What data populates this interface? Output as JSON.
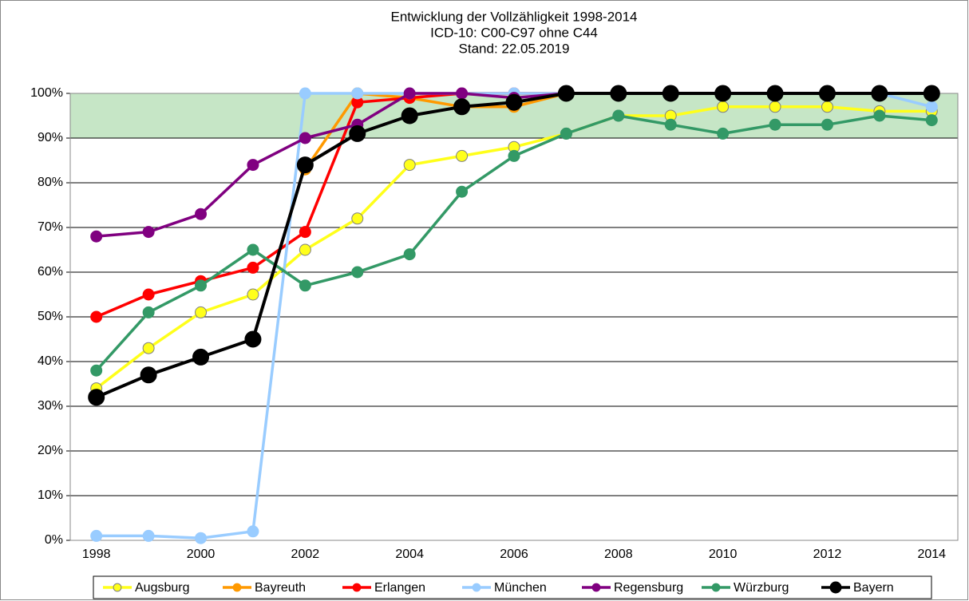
{
  "chart_data": {
    "type": "line",
    "title": "Entwicklung der Vollzähligkeit 1998-2014",
    "subtitle": [
      "ICD-10: C00-C97 ohne C44",
      "Stand: 22.05.2019"
    ],
    "categories": [
      "1998",
      null,
      "2000",
      null,
      "2002",
      null,
      "2004",
      null,
      "2006",
      null,
      "2008",
      null,
      "2010",
      null,
      "2012",
      null,
      "2014"
    ],
    "ylim": [
      0,
      100
    ],
    "yticks": [
      {
        "value": 0,
        "label": "0%"
      },
      {
        "value": 10,
        "label": "10%"
      },
      {
        "value": 20,
        "label": "20%"
      },
      {
        "value": 30,
        "label": "30%"
      },
      {
        "value": 40,
        "label": "40%"
      },
      {
        "value": 50,
        "label": "50%"
      },
      {
        "value": 60,
        "label": "60%"
      },
      {
        "value": 70,
        "label": "70%"
      },
      {
        "value": 80,
        "label": "80%"
      },
      {
        "value": 90,
        "label": "90%"
      },
      {
        "value": 100,
        "label": "100%"
      }
    ],
    "grid": true,
    "target_range": [
      90,
      100
    ],
    "target_color": "#c6e6c6",
    "legend": "bottom",
    "series": [
      {
        "name": "Augsburg",
        "color": "#ffff1a",
        "marker_edge": "#7f7f7f",
        "marker_size": 7,
        "values": [
          34,
          43,
          51,
          55,
          65,
          72,
          84,
          86,
          88,
          91,
          95,
          95,
          97,
          97,
          97,
          96,
          96
        ]
      },
      {
        "name": "Bayreuth",
        "color": "#ff9900",
        "marker_size": 7,
        "values": [
          null,
          null,
          null,
          null,
          83,
          100,
          99,
          97,
          97,
          100,
          100,
          100,
          100,
          100,
          100,
          100,
          100
        ]
      },
      {
        "name": "Erlangen",
        "color": "#ff0000",
        "marker_size": 7,
        "values": [
          50,
          55,
          58,
          61,
          69,
          98,
          99,
          100,
          100,
          100,
          100,
          100,
          100,
          100,
          100,
          100,
          100
        ]
      },
      {
        "name": "München",
        "color": "#99ccff",
        "marker_size": 7,
        "values": [
          1,
          1,
          0.5,
          2,
          100,
          100,
          100,
          100,
          100,
          100,
          100,
          100,
          100,
          100,
          100,
          100,
          97
        ]
      },
      {
        "name": "Regensburg",
        "color": "#800080",
        "marker_size": 7,
        "values": [
          68,
          69,
          73,
          84,
          90,
          93,
          100,
          100,
          99,
          100,
          100,
          100,
          100,
          100,
          100,
          100,
          100
        ]
      },
      {
        "name": "Würzburg",
        "color": "#339966",
        "marker_size": 7,
        "values": [
          38,
          51,
          57,
          65,
          57,
          60,
          64,
          78,
          86,
          91,
          95,
          93,
          91,
          93,
          93,
          95,
          94
        ]
      },
      {
        "name": "Bayern",
        "color": "#000000",
        "marker_size": 10,
        "values": [
          32,
          37,
          41,
          45,
          84,
          91,
          95,
          97,
          98,
          100,
          100,
          100,
          100,
          100,
          100,
          100,
          100
        ]
      }
    ]
  }
}
